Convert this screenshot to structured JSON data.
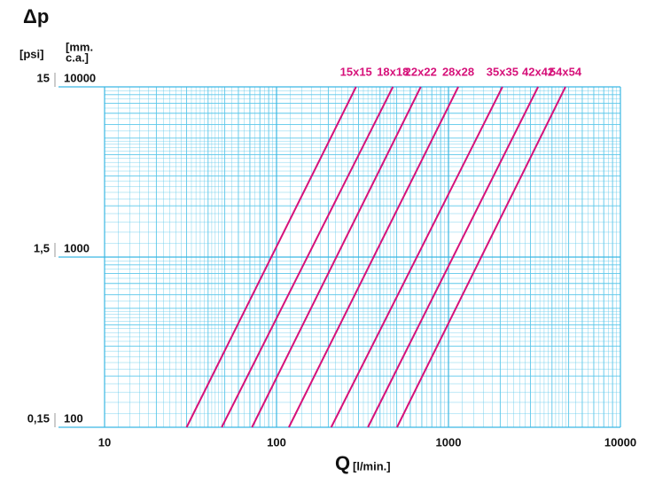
{
  "chart_data": {
    "type": "line",
    "y_title": "Δp",
    "y2_unit": "[psi]",
    "y_unit": [
      "[mm.",
      "c.a.]"
    ],
    "x_title": "Q",
    "x_unit": "[l/min.]",
    "log_x": true,
    "log_y": true,
    "grid": true,
    "xlim": [
      10,
      10000
    ],
    "xticks": [
      10,
      100,
      1000,
      10000
    ],
    "ylim": [
      100,
      10000
    ],
    "yticks": [
      100,
      1000,
      10000
    ],
    "y2lim": [
      0.15,
      15
    ],
    "y2ticks": [
      {
        "value": 0.15,
        "label": "0,15"
      },
      {
        "value": 1.5,
        "label": "1,5"
      },
      15
    ],
    "series": [
      {
        "name": "15x15",
        "color": "#d6127a",
        "x": [
          30,
          290
        ],
        "values": [
          100,
          10000
        ]
      },
      {
        "name": "18x18",
        "color": "#d6127a",
        "x": [
          48,
          475
        ],
        "values": [
          100,
          10000
        ]
      },
      {
        "name": "22x22",
        "color": "#d6127a",
        "x": [
          72,
          690
        ],
        "values": [
          100,
          10000
        ]
      },
      {
        "name": "28x28",
        "color": "#d6127a",
        "x": [
          118,
          1140
        ],
        "values": [
          100,
          10000
        ]
      },
      {
        "name": "35x35",
        "color": "#d6127a",
        "x": [
          208,
          2060
        ],
        "values": [
          100,
          10000
        ]
      },
      {
        "name": "42x42",
        "color": "#d6127a",
        "x": [
          340,
          3320
        ],
        "values": [
          100,
          10000
        ]
      },
      {
        "name": "54x54",
        "color": "#d6127a",
        "x": [
          502,
          4790
        ],
        "values": [
          100,
          10000
        ]
      }
    ]
  }
}
